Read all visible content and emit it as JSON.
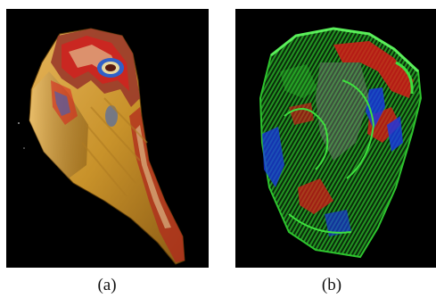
{
  "figure": {
    "panels": [
      {
        "caption": "(a)",
        "background": "#000000",
        "main_color": "#c8922a",
        "highlight_colors": [
          "#d81e1e",
          "#3060c8",
          "#e8d8a0"
        ]
      },
      {
        "caption": "(b)",
        "background": "#000000",
        "main_color": "#2ec42e",
        "highlight_colors": [
          "#e01818",
          "#1838e8",
          "#7a7a7a"
        ]
      }
    ]
  }
}
